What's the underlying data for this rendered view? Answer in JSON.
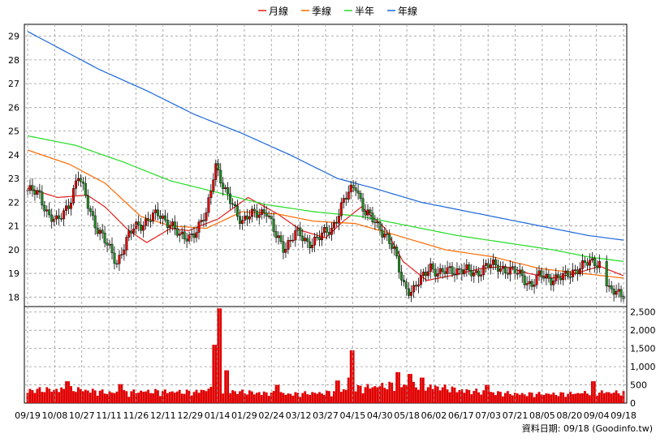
{
  "chart_data": [
    {
      "type": "candlestick",
      "legend": [
        "月線",
        "季線",
        "半年",
        "年線"
      ],
      "colors": {
        "月線": "#e0201c",
        "季線": "#ff6a00",
        "半年": "#22dd22",
        "年線": "#1a66dd",
        "up": "#e00000",
        "down": "#228822",
        "volume": "#ff0000"
      },
      "y_ticks": [
        18,
        19,
        20,
        21,
        22,
        23,
        24,
        25,
        26,
        27,
        28,
        29
      ],
      "ylim": [
        17.6,
        29.5
      ],
      "grid": true,
      "x_ticks": [
        "09/19",
        "10/08",
        "10/27",
        "11/11",
        "11/26",
        "12/11",
        "12/29",
        "01/14",
        "01/29",
        "02/24",
        "03/12",
        "03/27",
        "04/15",
        "04/30",
        "05/18",
        "06/02",
        "06/17",
        "07/03",
        "07/21",
        "08/05",
        "08/20",
        "09/04",
        "09/18"
      ],
      "close_series": [
        {
          "t": 0,
          "v": 22.5
        },
        {
          "t": 0.02,
          "v": 22.3
        },
        {
          "t": 0.035,
          "v": 21.5
        },
        {
          "t": 0.05,
          "v": 21.1
        },
        {
          "t": 0.07,
          "v": 22.0
        },
        {
          "t": 0.085,
          "v": 23.1
        },
        {
          "t": 0.1,
          "v": 22.0
        },
        {
          "t": 0.115,
          "v": 21.0
        },
        {
          "t": 0.13,
          "v": 20.3
        },
        {
          "t": 0.15,
          "v": 19.5
        },
        {
          "t": 0.165,
          "v": 20.3
        },
        {
          "t": 0.18,
          "v": 21.0
        },
        {
          "t": 0.2,
          "v": 21.2
        },
        {
          "t": 0.22,
          "v": 21.5
        },
        {
          "t": 0.24,
          "v": 21.1
        },
        {
          "t": 0.255,
          "v": 20.5
        },
        {
          "t": 0.27,
          "v": 20.6
        },
        {
          "t": 0.285,
          "v": 20.8
        },
        {
          "t": 0.3,
          "v": 21.5
        },
        {
          "t": 0.315,
          "v": 23.7
        },
        {
          "t": 0.33,
          "v": 22.4
        },
        {
          "t": 0.345,
          "v": 21.9
        },
        {
          "t": 0.36,
          "v": 21.2
        },
        {
          "t": 0.38,
          "v": 21.5
        },
        {
          "t": 0.4,
          "v": 21.7
        },
        {
          "t": 0.415,
          "v": 20.6
        },
        {
          "t": 0.43,
          "v": 20.1
        },
        {
          "t": 0.45,
          "v": 20.7
        },
        {
          "t": 0.47,
          "v": 20.3
        },
        {
          "t": 0.49,
          "v": 20.5
        },
        {
          "t": 0.51,
          "v": 20.9
        },
        {
          "t": 0.53,
          "v": 22.0
        },
        {
          "t": 0.55,
          "v": 22.8
        },
        {
          "t": 0.565,
          "v": 21.6
        },
        {
          "t": 0.58,
          "v": 21.2
        },
        {
          "t": 0.6,
          "v": 20.7
        },
        {
          "t": 0.615,
          "v": 19.9
        },
        {
          "t": 0.63,
          "v": 18.6
        },
        {
          "t": 0.645,
          "v": 18.2
        },
        {
          "t": 0.66,
          "v": 18.7
        },
        {
          "t": 0.675,
          "v": 19.4
        },
        {
          "t": 0.69,
          "v": 18.9
        },
        {
          "t": 0.71,
          "v": 19.2
        },
        {
          "t": 0.73,
          "v": 19.1
        },
        {
          "t": 0.75,
          "v": 19.0
        },
        {
          "t": 0.77,
          "v": 19.3
        },
        {
          "t": 0.79,
          "v": 19.3
        },
        {
          "t": 0.81,
          "v": 19.1
        },
        {
          "t": 0.83,
          "v": 18.9
        },
        {
          "t": 0.845,
          "v": 18.5
        },
        {
          "t": 0.86,
          "v": 18.9
        },
        {
          "t": 0.88,
          "v": 18.8
        },
        {
          "t": 0.9,
          "v": 18.8
        },
        {
          "t": 0.92,
          "v": 19.2
        },
        {
          "t": 0.94,
          "v": 19.4
        },
        {
          "t": 0.96,
          "v": 19.5
        },
        {
          "t": 0.975,
          "v": 18.2
        },
        {
          "t": 1.0,
          "v": 18.2
        }
      ],
      "ma_series": [
        {
          "name": "月線",
          "points": [
            {
              "t": 0,
              "v": 22.6
            },
            {
              "t": 0.05,
              "v": 22.2
            },
            {
              "t": 0.1,
              "v": 22.3
            },
            {
              "t": 0.13,
              "v": 21.8
            },
            {
              "t": 0.17,
              "v": 20.8
            },
            {
              "t": 0.2,
              "v": 20.3
            },
            {
              "t": 0.24,
              "v": 20.9
            },
            {
              "t": 0.27,
              "v": 20.8
            },
            {
              "t": 0.32,
              "v": 21.3
            },
            {
              "t": 0.37,
              "v": 22.2
            },
            {
              "t": 0.42,
              "v": 21.5
            },
            {
              "t": 0.46,
              "v": 20.8
            },
            {
              "t": 0.5,
              "v": 20.5
            },
            {
              "t": 0.53,
              "v": 21.2
            },
            {
              "t": 0.56,
              "v": 21.8
            },
            {
              "t": 0.6,
              "v": 20.9
            },
            {
              "t": 0.63,
              "v": 19.5
            },
            {
              "t": 0.67,
              "v": 18.7
            },
            {
              "t": 0.71,
              "v": 18.9
            },
            {
              "t": 0.76,
              "v": 19.2
            },
            {
              "t": 0.8,
              "v": 19.3
            },
            {
              "t": 0.84,
              "v": 19.0
            },
            {
              "t": 0.88,
              "v": 18.8
            },
            {
              "t": 0.92,
              "v": 19.0
            },
            {
              "t": 0.96,
              "v": 19.3
            },
            {
              "t": 1.0,
              "v": 18.9
            }
          ]
        },
        {
          "name": "季線",
          "points": [
            {
              "t": 0,
              "v": 24.2
            },
            {
              "t": 0.07,
              "v": 23.6
            },
            {
              "t": 0.13,
              "v": 22.8
            },
            {
              "t": 0.19,
              "v": 21.4
            },
            {
              "t": 0.24,
              "v": 21.0
            },
            {
              "t": 0.3,
              "v": 20.9
            },
            {
              "t": 0.36,
              "v": 21.6
            },
            {
              "t": 0.42,
              "v": 21.5
            },
            {
              "t": 0.48,
              "v": 21.2
            },
            {
              "t": 0.55,
              "v": 21.1
            },
            {
              "t": 0.62,
              "v": 20.6
            },
            {
              "t": 0.7,
              "v": 20.0
            },
            {
              "t": 0.78,
              "v": 19.7
            },
            {
              "t": 0.86,
              "v": 19.2
            },
            {
              "t": 0.93,
              "v": 19.0
            },
            {
              "t": 1.0,
              "v": 18.8
            }
          ]
        },
        {
          "name": "半年",
          "points": [
            {
              "t": 0,
              "v": 24.8
            },
            {
              "t": 0.08,
              "v": 24.4
            },
            {
              "t": 0.16,
              "v": 23.7
            },
            {
              "t": 0.24,
              "v": 22.9
            },
            {
              "t": 0.32,
              "v": 22.4
            },
            {
              "t": 0.4,
              "v": 21.9
            },
            {
              "t": 0.48,
              "v": 21.6
            },
            {
              "t": 0.56,
              "v": 21.4
            },
            {
              "t": 0.64,
              "v": 21.0
            },
            {
              "t": 0.72,
              "v": 20.6
            },
            {
              "t": 0.8,
              "v": 20.3
            },
            {
              "t": 0.88,
              "v": 20.0
            },
            {
              "t": 0.94,
              "v": 19.7
            },
            {
              "t": 1.0,
              "v": 19.5
            }
          ]
        },
        {
          "name": "年線",
          "points": [
            {
              "t": 0,
              "v": 29.2
            },
            {
              "t": 0.06,
              "v": 28.4
            },
            {
              "t": 0.12,
              "v": 27.6
            },
            {
              "t": 0.2,
              "v": 26.7
            },
            {
              "t": 0.28,
              "v": 25.7
            },
            {
              "t": 0.36,
              "v": 24.9
            },
            {
              "t": 0.44,
              "v": 24.0
            },
            {
              "t": 0.52,
              "v": 23.0
            },
            {
              "t": 0.58,
              "v": 22.6
            },
            {
              "t": 0.66,
              "v": 22.0
            },
            {
              "t": 0.74,
              "v": 21.6
            },
            {
              "t": 0.82,
              "v": 21.2
            },
            {
              "t": 0.88,
              "v": 20.9
            },
            {
              "t": 0.94,
              "v": 20.6
            },
            {
              "t": 1.0,
              "v": 20.4
            }
          ]
        }
      ]
    },
    {
      "type": "bar",
      "series": [
        {
          "name": "volume"
        }
      ],
      "y_ticks": [
        "0",
        "500",
        "1,000",
        "1,500",
        "2,000",
        "2,500"
      ],
      "y_tick_values": [
        0,
        500,
        1000,
        1500,
        2000,
        2500
      ],
      "ylim": [
        0,
        2650
      ],
      "base_volume": [
        {
          "t": 0,
          "v": 350
        },
        {
          "t": 0.08,
          "v": 380
        },
        {
          "t": 0.14,
          "v": 280
        },
        {
          "t": 0.2,
          "v": 320
        },
        {
          "t": 0.28,
          "v": 300
        },
        {
          "t": 0.3,
          "v": 380
        },
        {
          "t": 0.36,
          "v": 300
        },
        {
          "t": 0.44,
          "v": 250
        },
        {
          "t": 0.5,
          "v": 280
        },
        {
          "t": 0.56,
          "v": 420
        },
        {
          "t": 0.62,
          "v": 500
        },
        {
          "t": 0.68,
          "v": 450
        },
        {
          "t": 0.74,
          "v": 330
        },
        {
          "t": 0.82,
          "v": 250
        },
        {
          "t": 0.9,
          "v": 250
        },
        {
          "t": 0.96,
          "v": 300
        },
        {
          "t": 1.0,
          "v": 280
        }
      ],
      "spikes": [
        {
          "t": 0.322,
          "v": 2600
        },
        {
          "t": 0.312,
          "v": 1600
        },
        {
          "t": 0.333,
          "v": 900
        },
        {
          "t": 0.546,
          "v": 1450
        },
        {
          "t": 0.54,
          "v": 700
        },
        {
          "t": 0.52,
          "v": 620
        },
        {
          "t": 0.065,
          "v": 600
        },
        {
          "t": 0.155,
          "v": 520
        },
        {
          "t": 0.62,
          "v": 850
        },
        {
          "t": 0.64,
          "v": 800
        },
        {
          "t": 0.66,
          "v": 700
        },
        {
          "t": 0.95,
          "v": 600
        },
        {
          "t": 0.77,
          "v": 500
        },
        {
          "t": 0.42,
          "v": 500
        }
      ]
    }
  ],
  "footer": {
    "text": "資料日期: 09/18 (Goodinfo.tw)"
  }
}
